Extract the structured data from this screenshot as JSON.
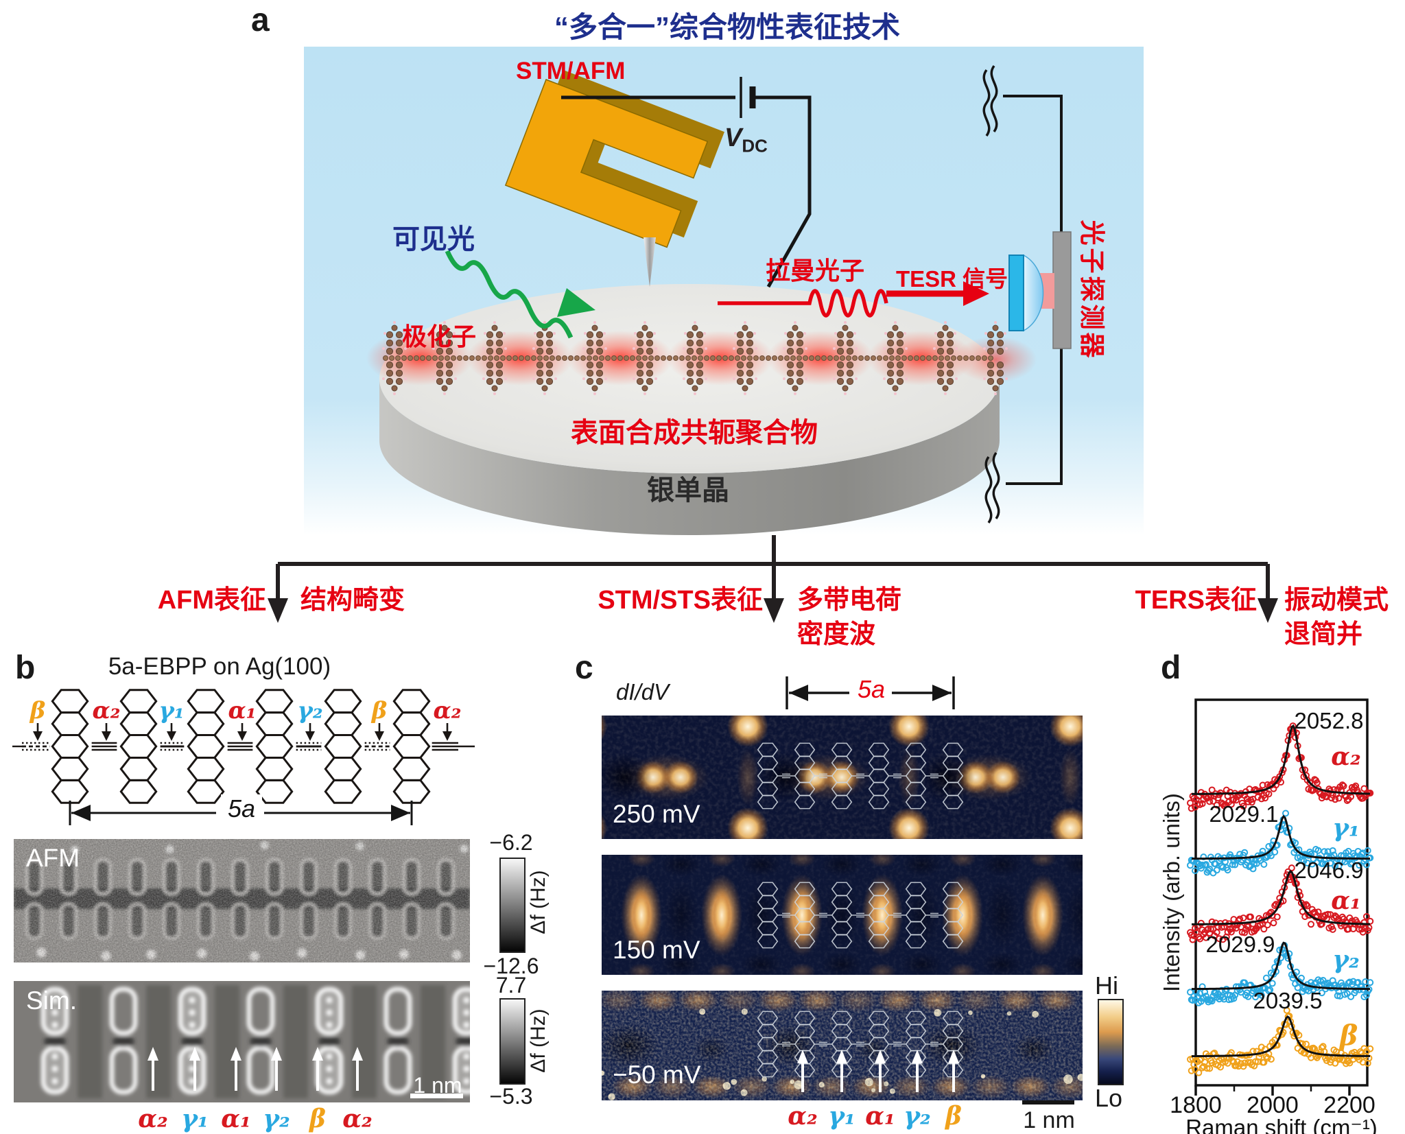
{
  "figure": {
    "panel_a": {
      "label": "a",
      "title": "“多合一”综合物性表征技术",
      "stm_afm": "STM/AFM",
      "vdc_main": "V",
      "vdc_sub": "DC",
      "visible_light": "可见光",
      "polaron": "极化子",
      "raman_photon": "拉曼光子",
      "tesr_signal": "TESR 信号",
      "photon_detector": "光子探测器",
      "polymer": "表面合成共轭聚合物",
      "substrate": "银单晶"
    },
    "flow": {
      "afm_method": "AFM表征",
      "afm_result": "结构畸变",
      "sts_method": "STM/STS表征",
      "sts_result_1": "多带电荷",
      "sts_result_2": "密度波",
      "ters_method": "TERS表征",
      "ters_result_1": "振动模式",
      "ters_result_2": "退简并"
    },
    "panel_b": {
      "label": "b",
      "title": "5a-EBPP on Ag(100)",
      "bond_labels": [
        {
          "t": "β",
          "c": "#f0a11a"
        },
        {
          "t": "α₂",
          "c": "#d71920"
        },
        {
          "t": "γ₁",
          "c": "#29a8e0"
        },
        {
          "t": "α₁",
          "c": "#d71920"
        },
        {
          "t": "γ₂",
          "c": "#29a8e0"
        },
        {
          "t": "β",
          "c": "#f0a11a"
        },
        {
          "t": "α₂",
          "c": "#d71920"
        }
      ],
      "span_label": "5a",
      "afm_tag": "AFM",
      "sim_tag": "Sim.",
      "afm_scale_top": "−6.2",
      "afm_scale_bottom": "−12.6",
      "sim_scale_top": "7.7",
      "sim_scale_bottom": "−5.3",
      "scale_unit": "Δf (Hz)",
      "scalebar": "1 nm",
      "site_labels": [
        {
          "t": "α₂",
          "c": "#d71920"
        },
        {
          "t": "γ₁",
          "c": "#29a8e0"
        },
        {
          "t": "α₁",
          "c": "#d71920"
        },
        {
          "t": "γ₂",
          "c": "#29a8e0"
        },
        {
          "t": "β",
          "c": "#f0a11a"
        },
        {
          "t": "α₂",
          "c": "#d71920"
        }
      ]
    },
    "panel_c": {
      "label": "c",
      "map_tag": "dI/dV",
      "span_label": "5a",
      "bias": [
        "250 mV",
        "150 mV",
        "−50 mV"
      ],
      "cbar_hi": "Hi",
      "cbar_lo": "Lo",
      "scalebar": "1 nm",
      "site_labels": [
        {
          "t": "α₂",
          "c": "#d71920"
        },
        {
          "t": "γ₁",
          "c": "#29a8e0"
        },
        {
          "t": "α₁",
          "c": "#d71920"
        },
        {
          "t": "γ₂",
          "c": "#29a8e0"
        },
        {
          "t": "β",
          "c": "#f0a11a"
        }
      ]
    },
    "panel_d": {
      "label": "d"
    }
  },
  "colors": {
    "accent_red": "#e60012",
    "accent_blue": "#1e2f8d",
    "greek_red": "#d71920",
    "greek_cyan": "#29a8e0",
    "greek_orange": "#f0a11a",
    "box_blue": "#bde2f4"
  },
  "chart_data": {
    "type": "scatter",
    "style": "five stacked TERS spectra, open-circle data with black Lorentzian fits",
    "xlabel": "Raman shift (cm⁻¹)",
    "ylabel": "Intensity (arb. units)",
    "xlim": [
      1800,
      2246
    ],
    "xticks": [
      1800,
      2000,
      2200
    ],
    "minor_xticks": [
      1900,
      2100
    ],
    "grid": false,
    "legend_position": "right of each trace",
    "fit_color": "#111111",
    "series": [
      {
        "name": "α₂",
        "color": "#d71920",
        "peak": 2052.8,
        "peak_label": "2052.8",
        "fwhm": 40,
        "rel_amplitude": 1.0
      },
      {
        "name": "γ₁",
        "color": "#29a8e0",
        "peak": 2029.1,
        "peak_label": "2029.1",
        "fwhm": 34,
        "rel_amplitude": 0.62
      },
      {
        "name": "α₁",
        "color": "#d71920",
        "peak": 2046.9,
        "peak_label": "2046.9",
        "fwhm": 46,
        "rel_amplitude": 0.78
      },
      {
        "name": "γ₂",
        "color": "#29a8e0",
        "peak": 2029.9,
        "peak_label": "2029.9",
        "fwhm": 36,
        "rel_amplitude": 0.68
      },
      {
        "name": "β",
        "color": "#f0a11a",
        "peak": 2039.5,
        "peak_label": "2039.5",
        "fwhm": 42,
        "rel_amplitude": 0.58
      }
    ]
  }
}
